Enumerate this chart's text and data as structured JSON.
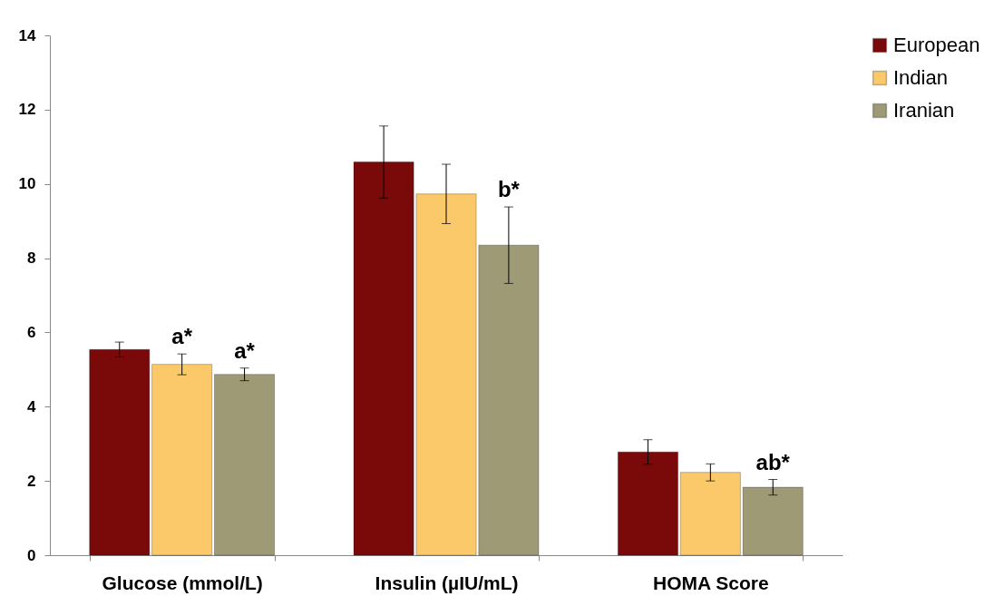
{
  "chart_data": {
    "type": "bar",
    "categories": [
      "Glucose (mmol/L)",
      "Insulin (µIU/mL)",
      "HOMA Score"
    ],
    "series": [
      {
        "name": "European",
        "color": "#7a0a0a",
        "values": [
          5.54,
          10.59,
          2.78
        ],
        "errors": [
          0.2,
          0.97,
          0.33
        ]
      },
      {
        "name": "Indian",
        "color": "#fcc96a",
        "values": [
          5.14,
          9.73,
          2.23
        ],
        "errors": [
          0.28,
          0.8,
          0.23
        ]
      },
      {
        "name": "Iranian",
        "color": "#9e9a76",
        "values": [
          4.87,
          8.35,
          1.83
        ],
        "errors": [
          0.17,
          1.03,
          0.21
        ]
      }
    ],
    "ylim": [
      0,
      14
    ],
    "yticks": [
      0,
      2,
      4,
      6,
      8,
      10,
      12,
      14
    ],
    "grid": false,
    "legend": "right",
    "annotations": [
      {
        "text": "a*",
        "x": "Glucose (mmol/L)",
        "y": 5.42
      },
      {
        "text": "a*",
        "x": "Glucose (mmol/L)",
        "y": 5.04
      },
      {
        "text": "b*",
        "x": "Insulin (µIU/mL)",
        "y": 9.38
      },
      {
        "text": "ab*",
        "x": "HOMA Score",
        "y": 2.04
      }
    ]
  }
}
